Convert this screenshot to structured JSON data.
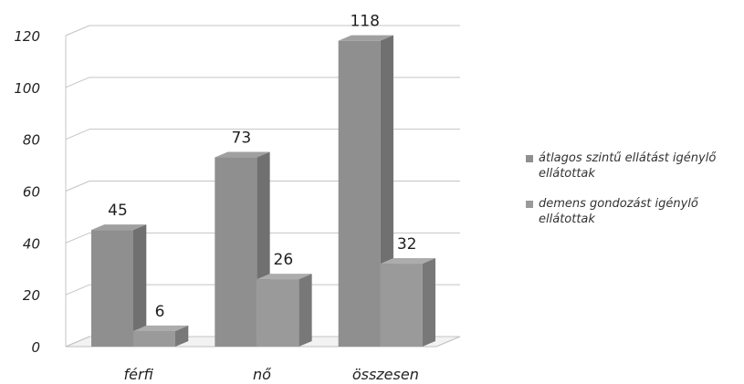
{
  "chart_data": {
    "type": "bar",
    "categories": [
      "férfi",
      "nő",
      "összesen"
    ],
    "series": [
      {
        "name": "átlagos szintű ellátást igénylő ellátottak",
        "values": [
          45,
          73,
          118
        ],
        "value_labels": [
          "45",
          "73",
          "118"
        ],
        "color": "#8f8f8f"
      },
      {
        "name": "demens gondozást igénylő ellátottak",
        "values": [
          6,
          26,
          32
        ],
        "value_labels": [
          "6",
          "26",
          "32"
        ],
        "color": "#9a9a9a"
      }
    ],
    "y_ticks": [
      "0",
      "20",
      "40",
      "60",
      "80",
      "100",
      "120"
    ],
    "ylim": [
      0,
      120
    ],
    "grid": true,
    "legend_position": "right",
    "title": "",
    "xlabel": "",
    "ylabel": ""
  }
}
